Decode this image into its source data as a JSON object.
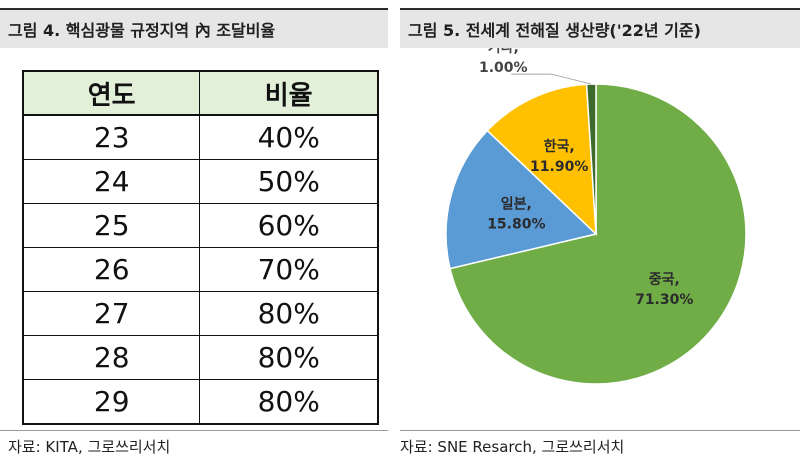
{
  "left_figure": {
    "title": "그림 4. 핵심광물 규정지역 內 조달비율",
    "source": "자료: KITA, 그로쓰리서치"
  },
  "right_figure": {
    "title": "그림 5. 전세계 전해질 생산량('22년 기준)",
    "source": "자료: SNE Resarch, 그로쓰리서치"
  },
  "chart_data": [
    {
      "type": "table",
      "columns": [
        "연도",
        "비율"
      ],
      "rows": [
        [
          "23",
          "40%"
        ],
        [
          "24",
          "50%"
        ],
        [
          "25",
          "60%"
        ],
        [
          "26",
          "70%"
        ],
        [
          "27",
          "80%"
        ],
        [
          "28",
          "80%"
        ],
        [
          "29",
          "80%"
        ]
      ]
    },
    {
      "type": "pie",
      "slices": [
        {
          "label": "중국",
          "value": 71.3,
          "display": "71.30%",
          "color": "#70ad47"
        },
        {
          "label": "일본",
          "value": 15.8,
          "display": "15.80%",
          "color": "#5b9bd5"
        },
        {
          "label": "한국",
          "value": 11.9,
          "display": "11.90%",
          "color": "#ffc000"
        },
        {
          "label": "기타",
          "value": 1.0,
          "display": "1.00%",
          "color": "#3d6a2c"
        }
      ]
    }
  ]
}
